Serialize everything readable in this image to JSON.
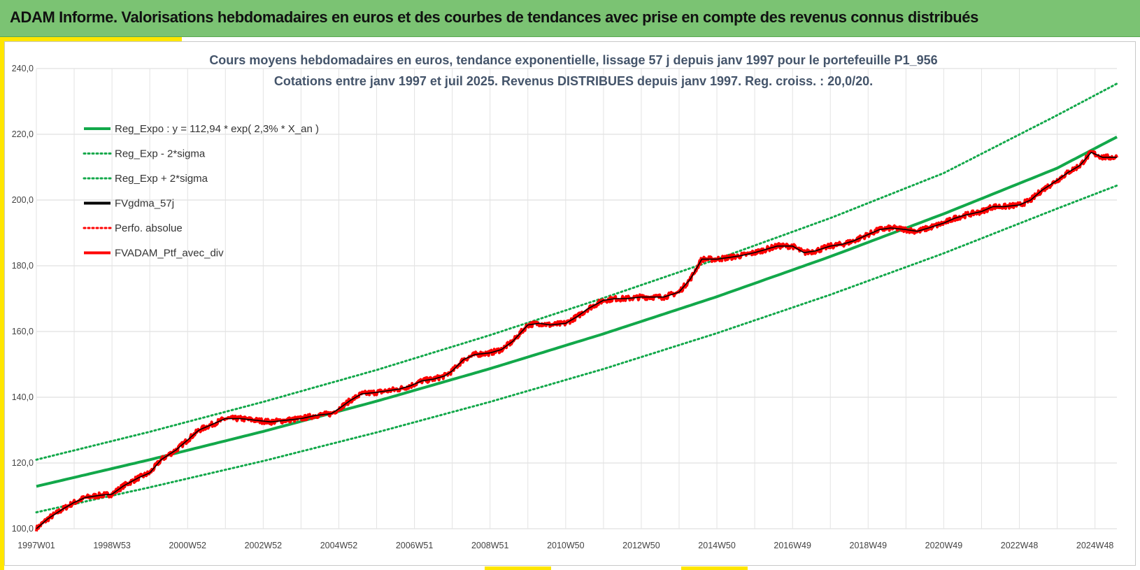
{
  "header": {
    "title": "ADAM Informe. Valorisations hebdomadaires en euros et des courbes de tendances avec prise en compte des revenus connus distribués"
  },
  "colors": {
    "header_bg": "#7bc373",
    "accent_yellow": "#ffe600",
    "trend_green": "#12a84a",
    "portfolio_red": "#ff0000",
    "smooth_black": "#000000"
  },
  "chart_data": {
    "type": "line",
    "title_line1": "Cours moyens hebdomadaires  en euros, tendance exponentielle, lissage 57 j depuis janv 1997 pour le portefeuille P1_956",
    "title_line2": "Cotations entre janv 1997 et juil 2025. Revenus DISTRIBUES depuis janv 1997. Reg. croiss. : 20,0/20.",
    "x_tick_labels": [
      "1997W01",
      "1998W53",
      "2000W52",
      "2002W52",
      "2004W52",
      "2006W51",
      "2008W51",
      "2010W50",
      "2012W50",
      "2014W50",
      "2016W49",
      "2018W49",
      "2020W49",
      "2022W48",
      "2024W48"
    ],
    "x_tick_years": [
      1997.0,
      1999.0,
      2001.0,
      2003.0,
      2005.0,
      2007.0,
      2009.0,
      2011.0,
      2013.0,
      2015.0,
      2017.0,
      2019.0,
      2021.0,
      2023.0,
      2025.0
    ],
    "y_tick_labels": [
      "100,0",
      "120,0",
      "140,0",
      "160,0",
      "180,0",
      "200,0",
      "220,0",
      "240,0"
    ],
    "ylim": [
      100,
      240
    ],
    "xlim": [
      1997.0,
      2025.58
    ],
    "grid": true,
    "legend_placement": "top-left",
    "legend": [
      {
        "label": "Reg_Expo : y = 112,94 * exp( 2,3% *  X_an )",
        "style": "solid",
        "color": "#12a84a"
      },
      {
        "label": "Reg_Exp - 2*sigma",
        "style": "dotted",
        "color": "#12a84a"
      },
      {
        "label": "Reg_Exp + 2*sigma",
        "style": "dotted",
        "color": "#12a84a"
      },
      {
        "label": "FVgdma_57j",
        "style": "solid",
        "color": "#000000"
      },
      {
        "label": "Perfo. absolue",
        "style": "dotted",
        "color": "#ff0000"
      },
      {
        "label": "FVADAM_Ptf_avec_div",
        "style": "solid",
        "color": "#ff0000"
      }
    ],
    "series": [
      {
        "name": "Reg_Expo : y = 112,94 * exp( 2,3% *  X_an )",
        "x": [
          1997.0,
          2000.0,
          2003.0,
          2006.0,
          2009.0,
          2012.0,
          2015.0,
          2018.0,
          2021.0,
          2024.0,
          2025.58
        ],
        "values": [
          112.9,
          121.0,
          129.6,
          138.8,
          148.7,
          159.3,
          170.6,
          182.8,
          195.8,
          209.7,
          219.2
        ]
      },
      {
        "name": "Reg_Exp - 2*sigma",
        "x": [
          1997.0,
          2000.0,
          2003.0,
          2006.0,
          2009.0,
          2012.0,
          2015.0,
          2018.0,
          2021.0,
          2024.0,
          2025.58
        ],
        "values": [
          105.0,
          112.6,
          120.6,
          129.3,
          138.6,
          148.6,
          159.5,
          171.2,
          183.8,
          197.4,
          204.4
        ]
      },
      {
        "name": "Reg_Exp + 2*sigma",
        "x": [
          1997.0,
          2000.0,
          2003.0,
          2006.0,
          2009.0,
          2012.0,
          2015.0,
          2018.0,
          2021.0,
          2024.0,
          2025.58
        ],
        "values": [
          121.0,
          129.5,
          138.6,
          148.3,
          158.9,
          170.2,
          182.0,
          194.5,
          208.2,
          225.8,
          235.4
        ]
      },
      {
        "name": "FVADAM_Ptf_avec_div",
        "x": [
          1997.0,
          1997.3,
          1997.7,
          1998.0,
          1998.3,
          1998.7,
          1999.0,
          1999.3,
          1999.7,
          2000.0,
          2000.3,
          2000.7,
          2001.0,
          2001.3,
          2001.6,
          2002.0,
          2002.4,
          2002.8,
          2003.2,
          2003.6,
          2004.0,
          2004.4,
          2004.8,
          2005.0,
          2005.3,
          2005.6,
          2006.0,
          2006.3,
          2006.6,
          2006.9,
          2007.2,
          2007.5,
          2007.8,
          2008.0,
          2008.3,
          2008.6,
          2009.0,
          2009.3,
          2009.6,
          2010.0,
          2010.3,
          2010.6,
          2011.0,
          2011.3,
          2011.6,
          2012.0,
          2012.3,
          2012.6,
          2013.0,
          2013.3,
          2013.6,
          2014.0,
          2014.3,
          2014.6,
          2015.0,
          2015.3,
          2015.6,
          2016.0,
          2016.3,
          2016.6,
          2017.0,
          2017.3,
          2017.6,
          2018.0,
          2018.3,
          2018.6,
          2019.0,
          2019.3,
          2019.6,
          2020.0,
          2020.3,
          2020.6,
          2021.0,
          2021.3,
          2021.6,
          2022.0,
          2022.3,
          2022.6,
          2023.0,
          2023.3,
          2023.6,
          2024.0,
          2024.3,
          2024.6,
          2024.9,
          2025.2,
          2025.58
        ],
        "values": [
          100.0,
          103.0,
          106.0,
          108.0,
          109.5,
          110.2,
          110.5,
          113.0,
          115.5,
          117.0,
          121.0,
          124.0,
          127.0,
          130.0,
          131.5,
          133.5,
          133.5,
          133.0,
          132.5,
          133.0,
          133.5,
          134.5,
          135.0,
          136.5,
          139.0,
          141.0,
          141.5,
          142.0,
          142.5,
          143.5,
          145.0,
          145.5,
          146.5,
          148.0,
          151.5,
          153.0,
          153.5,
          154.5,
          157.0,
          162.0,
          162.5,
          162.0,
          162.5,
          164.5,
          167.0,
          169.5,
          170.0,
          170.0,
          170.5,
          170.5,
          170.5,
          172.0,
          176.0,
          182.0,
          182.0,
          182.5,
          183.0,
          184.0,
          185.0,
          186.0,
          186.0,
          184.0,
          184.5,
          186.0,
          186.5,
          187.5,
          189.5,
          191.0,
          191.5,
          191.0,
          190.5,
          191.5,
          193.0,
          194.5,
          195.5,
          196.5,
          198.0,
          198.0,
          198.5,
          200.0,
          203.0,
          206.0,
          208.5,
          210.5,
          214.5,
          213.0,
          213.0
        ]
      }
    ]
  }
}
